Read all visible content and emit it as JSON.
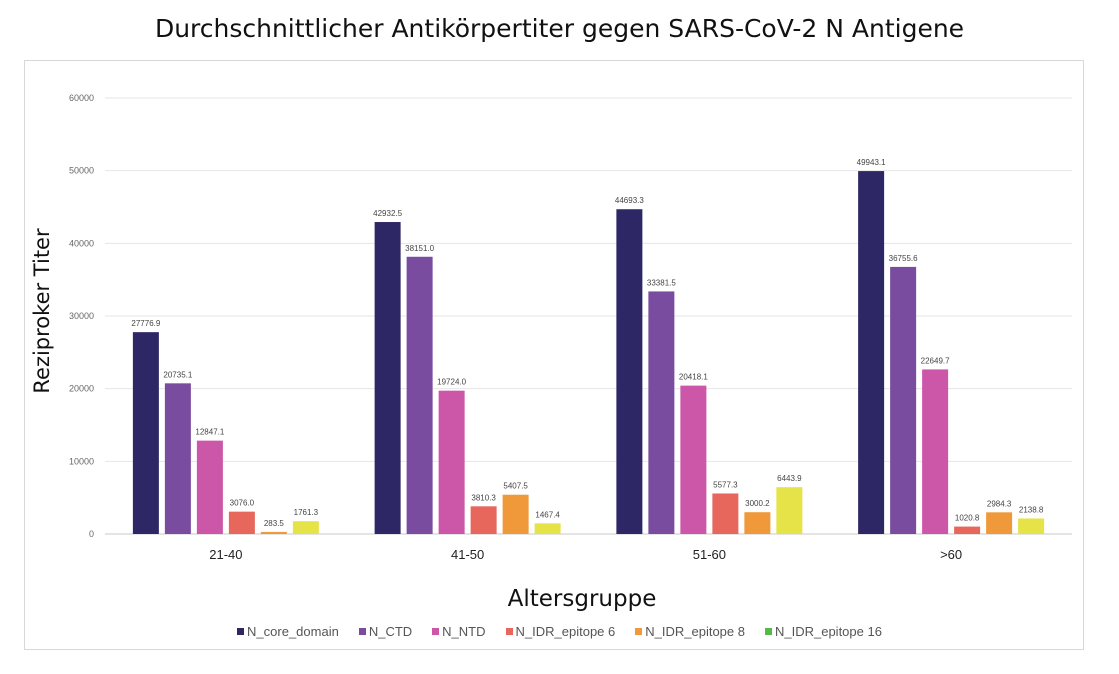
{
  "chart_data": {
    "type": "bar",
    "title": "Durchschnittlicher Antikörpertiter gegen SARS-CoV-2 N Antigene",
    "xlabel": "Altersgruppe",
    "ylabel": "Reziproker Titer",
    "ylim": [
      0,
      60000
    ],
    "yticks": [
      0,
      10000,
      20000,
      30000,
      40000,
      50000,
      60000
    ],
    "grid": true,
    "legend_position": "bottom",
    "categories": [
      "21-40",
      "41-50",
      "51-60",
      ">60"
    ],
    "series": [
      {
        "name": "N_core_domain",
        "color": "#2e2766",
        "values": [
          27776.9,
          42932.5,
          44693.3,
          49943.1
        ],
        "labels": [
          "27776.9",
          "42932.5",
          "44693.3",
          "49943.1"
        ]
      },
      {
        "name": "N_CTD",
        "color": "#7a4ca0",
        "values": [
          20735.1,
          38151.0,
          33381.5,
          36755.6
        ],
        "labels": [
          "20735.1",
          "38151.0",
          "33381.5",
          "36755.6"
        ]
      },
      {
        "name": "N_NTD",
        "color": "#cc56a7",
        "values": [
          12847.1,
          19724.0,
          20418.1,
          22649.7
        ],
        "labels": [
          "12847.1",
          "19724.0",
          "20418.1",
          "22649.7"
        ]
      },
      {
        "name": "N_IDR_epitope 6",
        "color": "#e8675d",
        "values": [
          3076.0,
          3810.3,
          5577.3,
          1020.8
        ],
        "labels": [
          "3076.0",
          "3810.3",
          "5577.3",
          "1020.8"
        ]
      },
      {
        "name": "N_IDR_epitope 8",
        "color": "#f0993a",
        "values": [
          283.5,
          5407.5,
          3000.2,
          2984.3
        ],
        "labels": [
          "283.5",
          "5407.5",
          "3000.2",
          "2984.3"
        ]
      },
      {
        "name": "N_IDR_epitope 16",
        "color": "#e6e348",
        "legend_color": "#56b848",
        "values": [
          1761.3,
          1467.4,
          6443.9,
          2138.8
        ],
        "labels": [
          "1761.3",
          "1467.4",
          "6443.9",
          "2138.8"
        ]
      }
    ]
  }
}
